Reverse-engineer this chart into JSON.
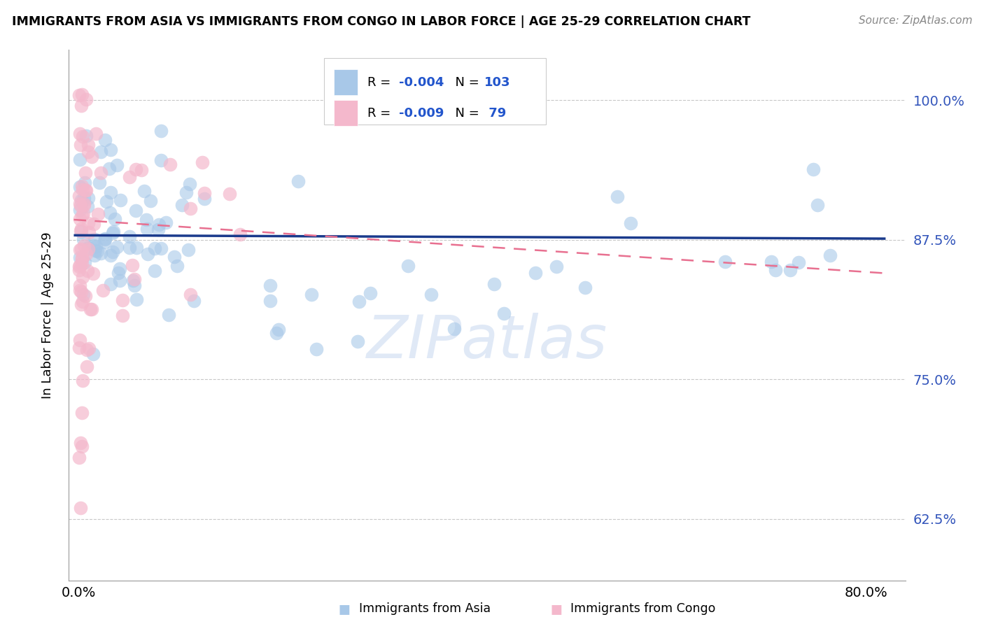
{
  "title": "IMMIGRANTS FROM ASIA VS IMMIGRANTS FROM CONGO IN LABOR FORCE | AGE 25-29 CORRELATION CHART",
  "source": "Source: ZipAtlas.com",
  "ylabel": "In Labor Force | Age 25-29",
  "y_ticks": [
    0.625,
    0.75,
    0.875,
    1.0
  ],
  "y_tick_labels": [
    "62.5%",
    "75.0%",
    "87.5%",
    "100.0%"
  ],
  "x_ticks": [
    0.0,
    0.8
  ],
  "x_tick_labels": [
    "0.0%",
    "80.0%"
  ],
  "x_lim": [
    -0.01,
    0.84
  ],
  "y_lim": [
    0.57,
    1.045
  ],
  "blue_color": "#a8c8e8",
  "pink_color": "#f4b8cc",
  "trend_blue_color": "#1a3a8c",
  "trend_pink_color": "#e87090",
  "watermark": "ZIPatlas",
  "blue_trend_y0": 0.879,
  "blue_trend_y1": 0.876,
  "pink_trend_y0": 0.893,
  "pink_trend_y1": 0.845
}
